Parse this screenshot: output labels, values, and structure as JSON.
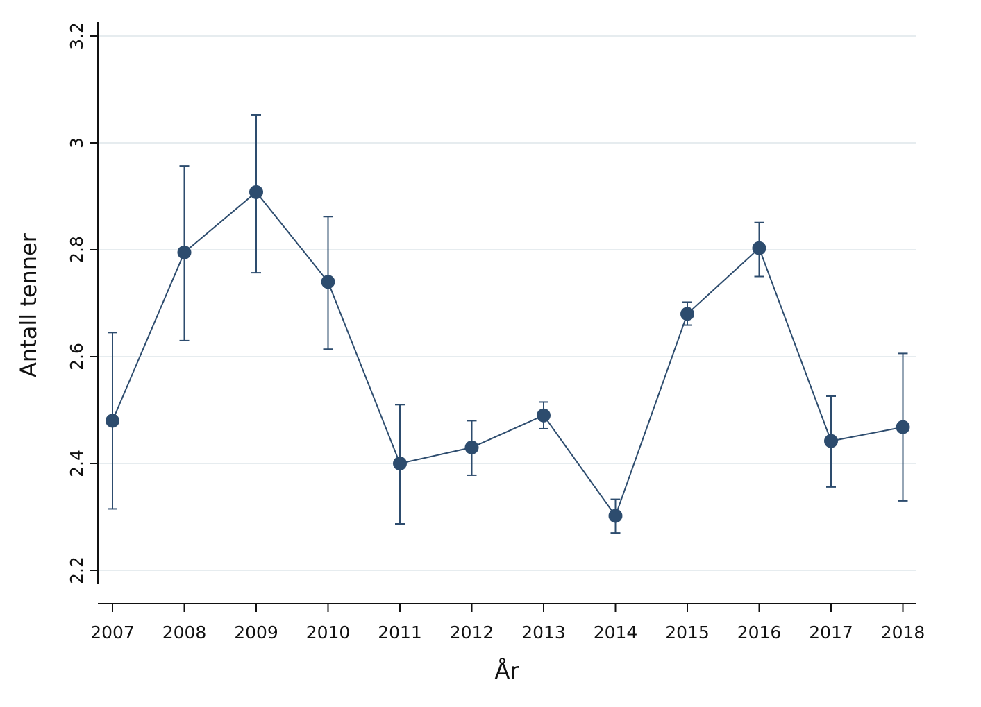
{
  "chart_data": {
    "type": "line",
    "title": "",
    "xlabel": "År",
    "ylabel": "Antall tenner",
    "x": [
      "2007",
      "2008",
      "2009",
      "2010",
      "2011",
      "2012",
      "2013",
      "2014",
      "2015",
      "2016",
      "2017",
      "2018"
    ],
    "y": [
      2.48,
      2.795,
      2.908,
      2.74,
      2.4,
      2.43,
      2.49,
      2.302,
      2.68,
      2.803,
      2.442,
      2.468
    ],
    "ci_low": [
      2.315,
      2.63,
      2.757,
      2.614,
      2.287,
      2.378,
      2.465,
      2.27,
      2.659,
      2.75,
      2.356,
      2.33
    ],
    "ci_high": [
      2.645,
      2.957,
      3.052,
      2.862,
      2.51,
      2.48,
      2.515,
      2.333,
      2.702,
      2.851,
      2.526,
      2.606
    ],
    "yticks": [
      2.2,
      2.4,
      2.6,
      2.8,
      3,
      3.2
    ],
    "ytick_labels": [
      "2.2",
      "2.4",
      "2.6",
      "2.8",
      "3",
      "3.2"
    ],
    "ylim": [
      2.174,
      3.2
    ],
    "grid": true,
    "legend": "none",
    "colors": {
      "series": "#2d4c6e",
      "grid": "#dde6ea",
      "axis": "#111111"
    }
  }
}
